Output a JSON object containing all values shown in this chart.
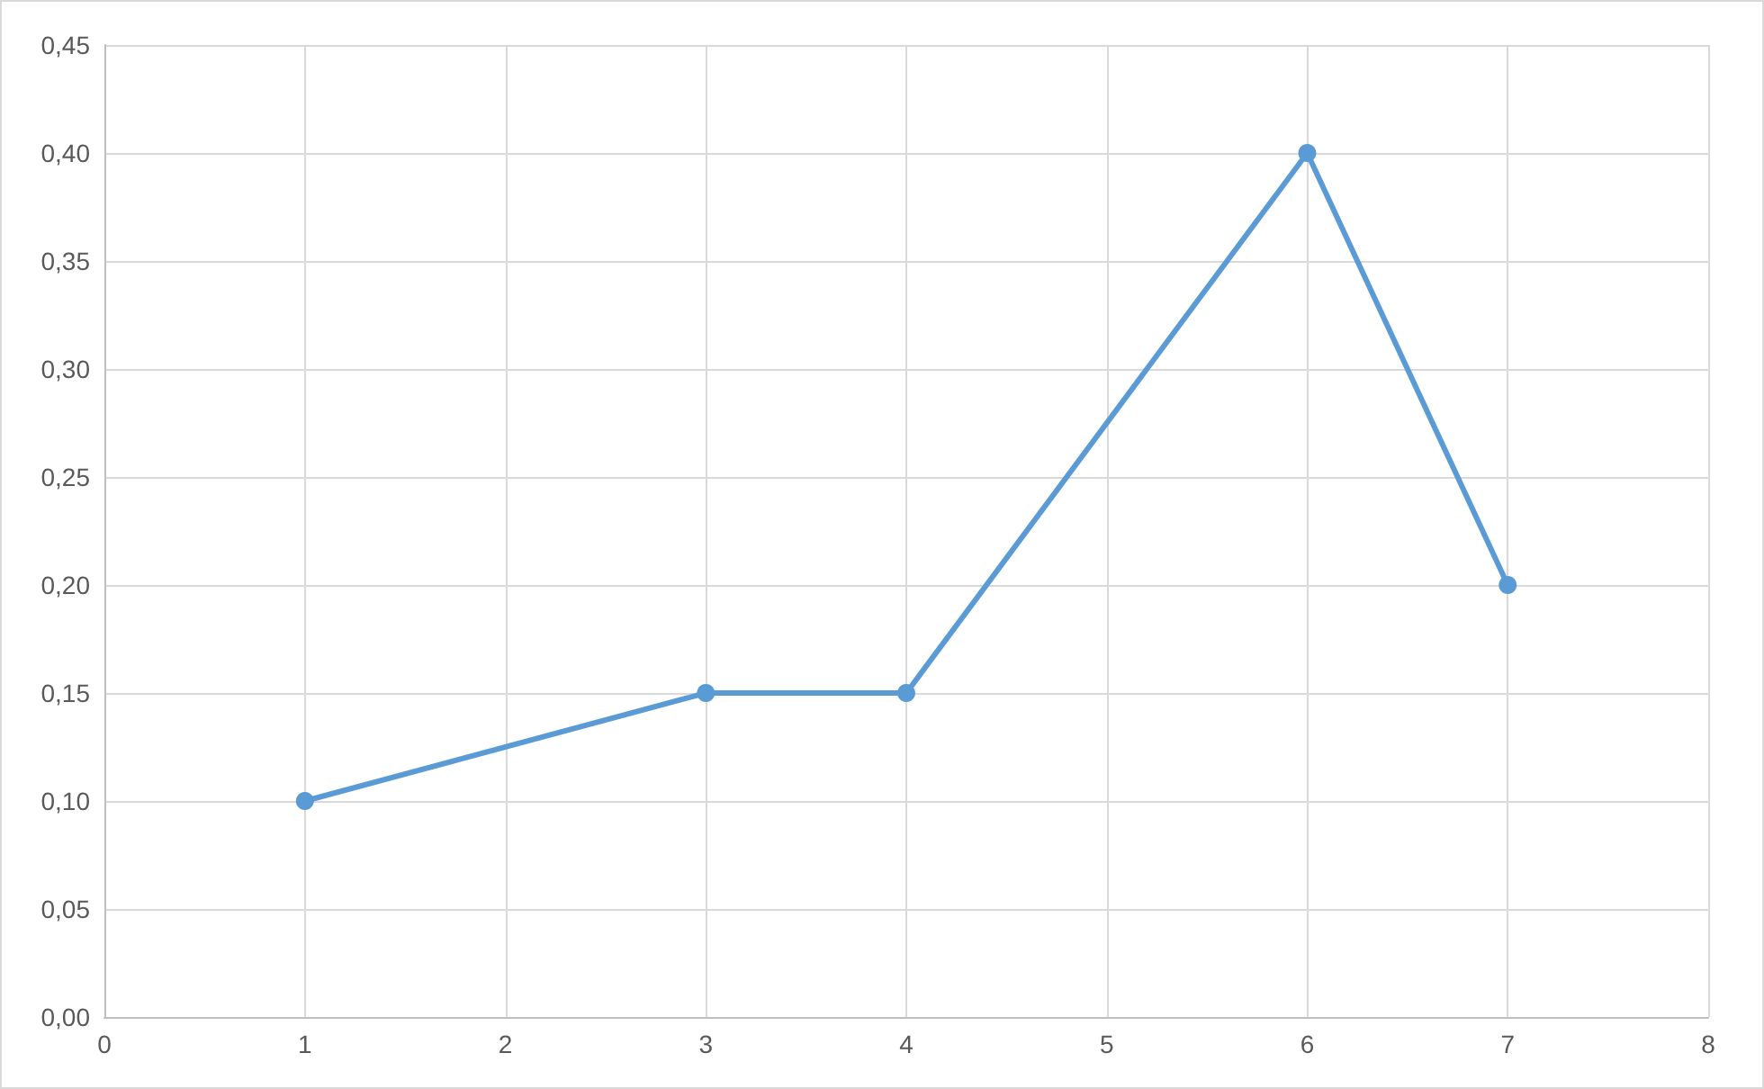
{
  "chart_data": {
    "type": "line",
    "x": [
      1,
      3,
      4,
      6,
      7
    ],
    "series": [
      {
        "color": "#5b9bd5",
        "values": [
          0.1,
          0.15,
          0.15,
          0.4,
          0.2
        ]
      }
    ],
    "xlim": [
      0,
      8
    ],
    "xticks": [
      0,
      1,
      2,
      3,
      4,
      5,
      6,
      7,
      8
    ],
    "ylim": [
      0,
      0.45
    ],
    "yticks": [
      {
        "value": 0,
        "label": "0,00"
      },
      {
        "value": 0.05,
        "label": "0,05"
      },
      {
        "value": 0.1,
        "label": "0,10"
      },
      {
        "value": 0.15,
        "label": "0,15"
      },
      {
        "value": 0.2,
        "label": "0,20"
      },
      {
        "value": 0.25,
        "label": "0,25"
      },
      {
        "value": 0.3,
        "label": "0,30"
      },
      {
        "value": 0.35,
        "label": "0,35"
      },
      {
        "value": 0.4,
        "label": "0,40"
      },
      {
        "value": 0.45,
        "label": "0,45"
      }
    ],
    "grid": true,
    "marker": "circle"
  }
}
